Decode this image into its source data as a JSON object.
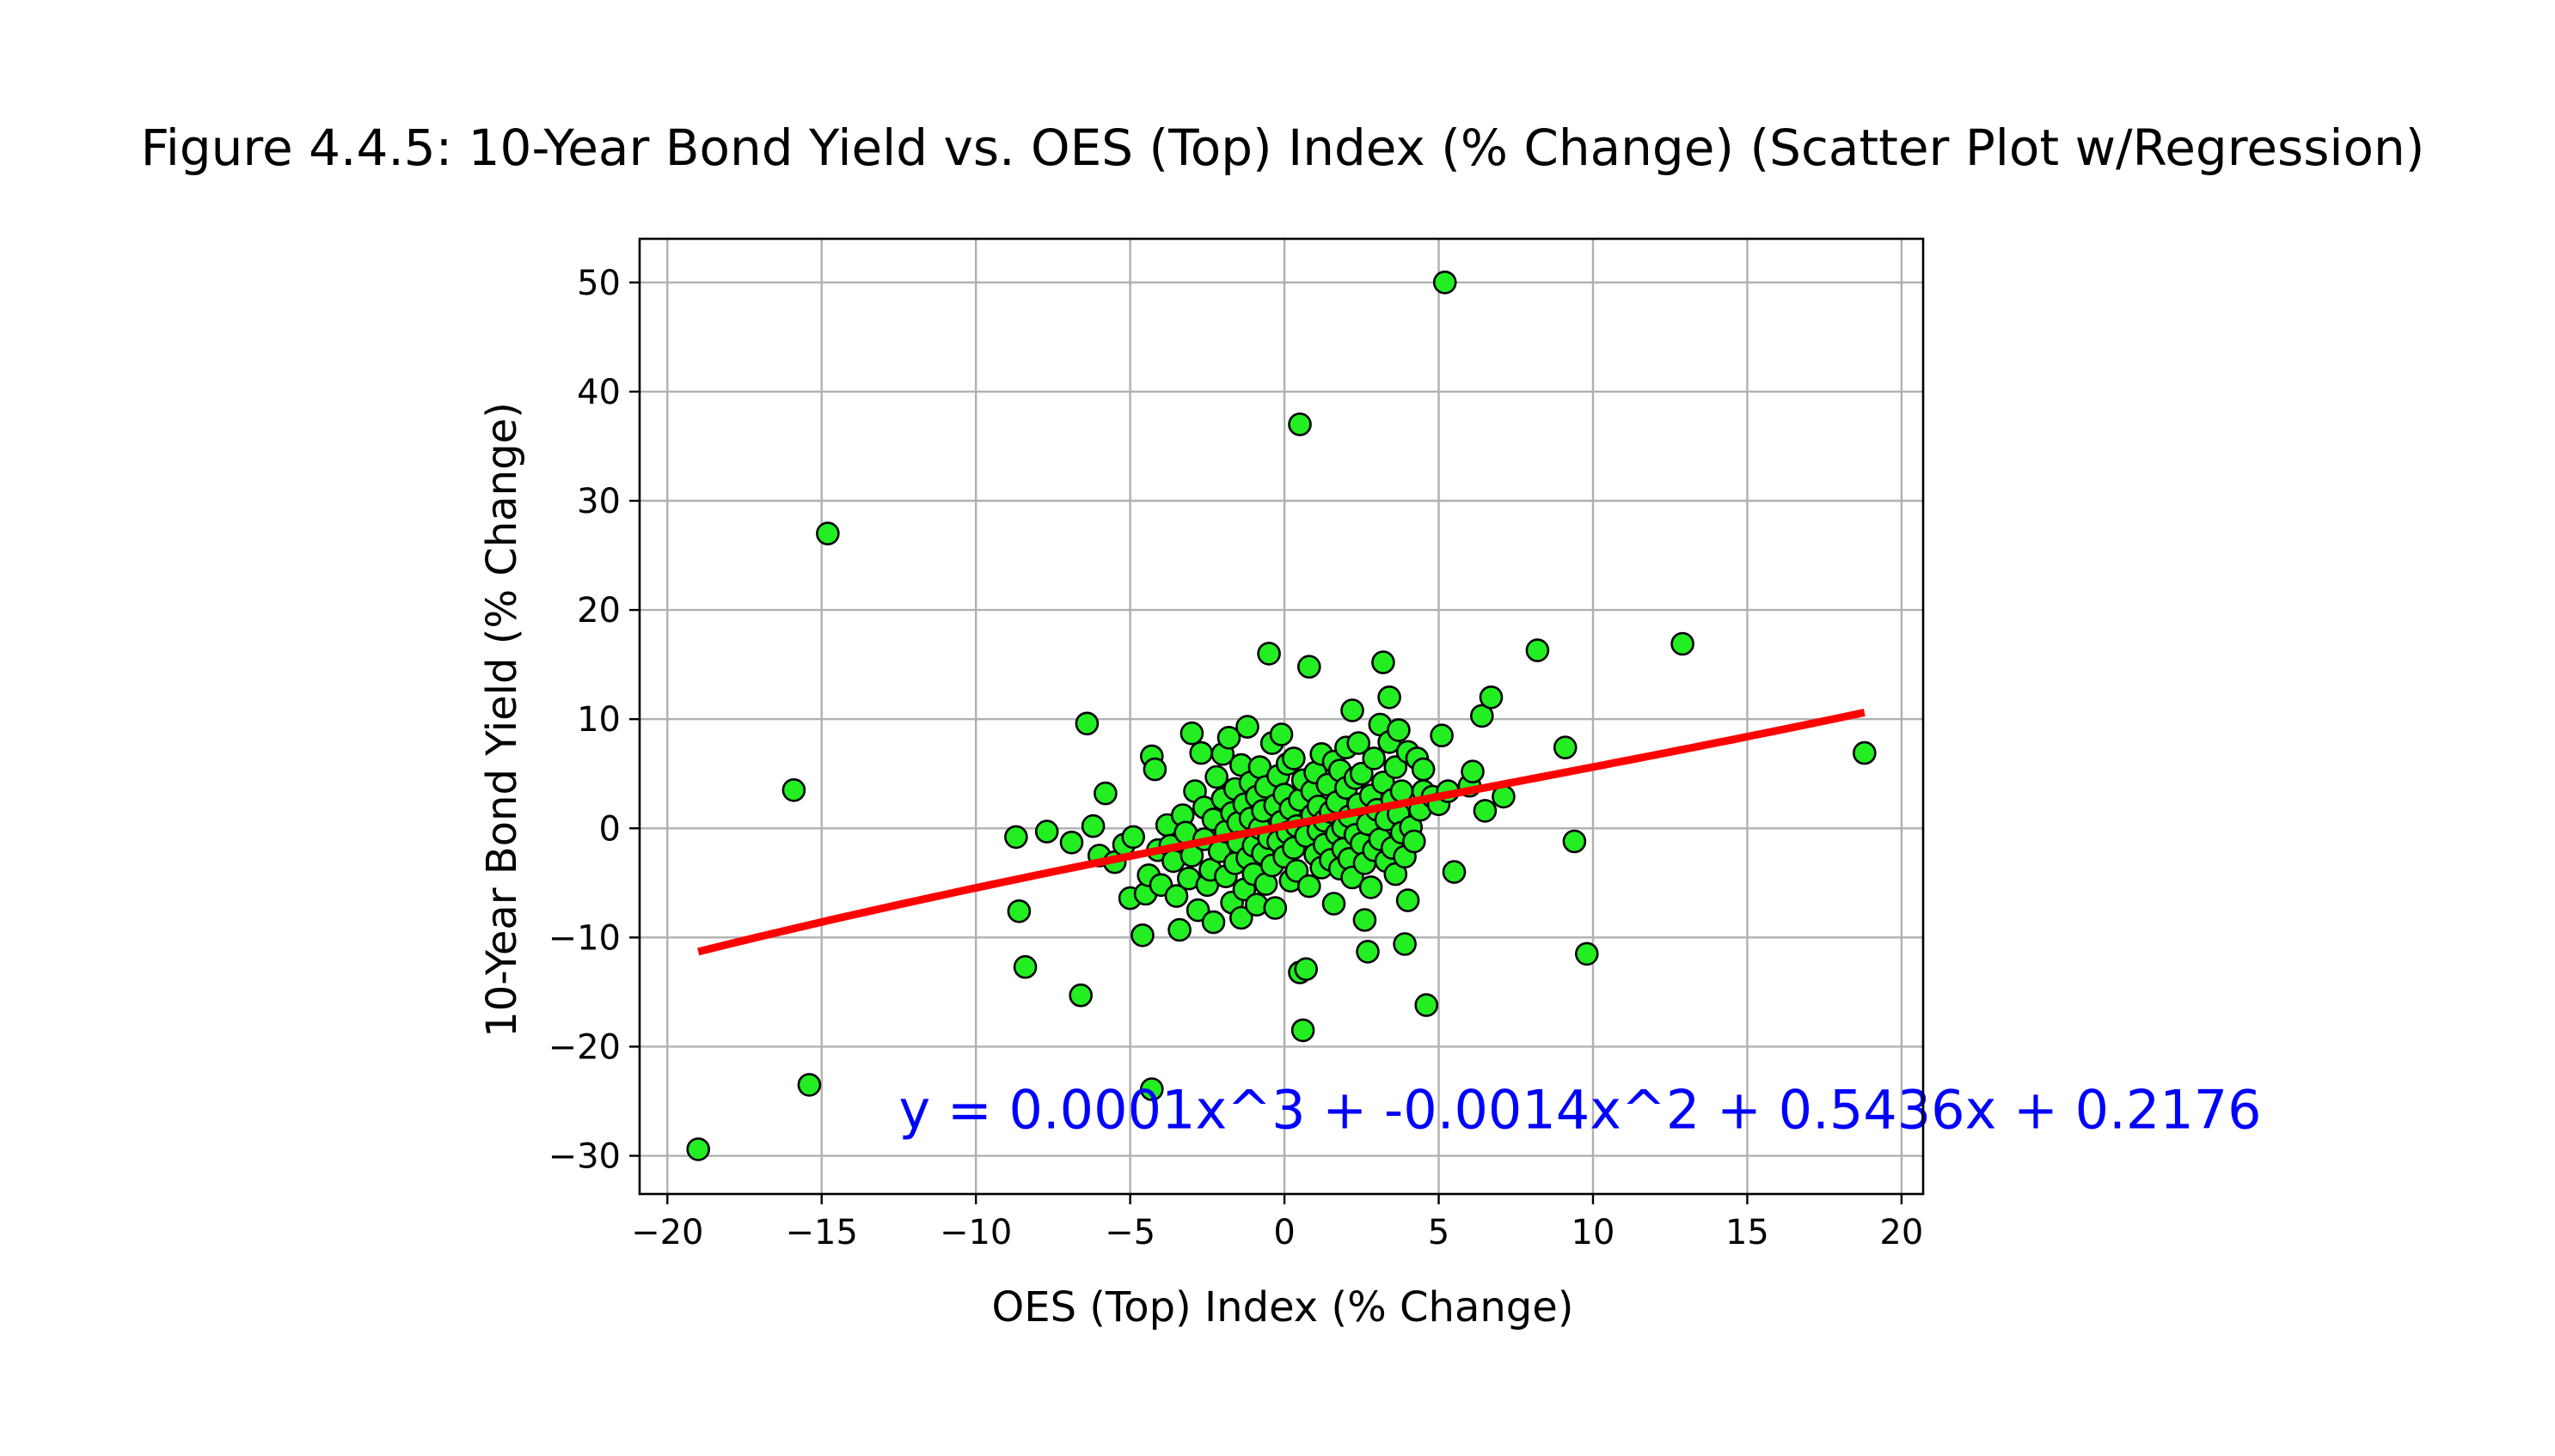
{
  "chart_data": {
    "type": "scatter",
    "title": "Figure 4.4.5: 10-Year Bond Yield vs. OES (Top) Index (% Change) (Scatter Plot w/Regression)",
    "xlabel": "OES (Top) Index (% Change)",
    "ylabel": "10-Year Bond Yield (% Change)",
    "xlim": [
      -20.9,
      20.7
    ],
    "ylim": [
      -33.5,
      54.0
    ],
    "xticks": [
      -20,
      -15,
      -10,
      -5,
      0,
      5,
      10,
      15,
      20
    ],
    "yticks": [
      -30,
      -20,
      -10,
      0,
      10,
      20,
      30,
      40,
      50
    ],
    "xtick_labels": [
      "−20",
      "−15",
      "−10",
      "−5",
      "0",
      "5",
      "10",
      "15",
      "20"
    ],
    "ytick_labels": [
      "−30",
      "−20",
      "−10",
      "0",
      "10",
      "20",
      "30",
      "40",
      "50"
    ],
    "grid": true,
    "point_color": "#22ee22",
    "point_edge_color": "#000000",
    "regression_color": "#ff0000",
    "equation_color": "#0000ff",
    "regression": {
      "coefficients": [
        0.0001,
        -0.0014,
        0.5436,
        0.2176
      ],
      "x_range": [
        -19.0,
        18.8
      ],
      "equation_text": "y = 0.0001x^3 + -0.0014x^2 + 0.5436x + 0.2176",
      "equation_anchor": [
        -12.5,
        -27.5
      ]
    },
    "points": [
      [
        -19.0,
        -29.4
      ],
      [
        -15.9,
        3.5
      ],
      [
        -15.4,
        -23.5
      ],
      [
        -14.8,
        27.0
      ],
      [
        -8.7,
        -0.8
      ],
      [
        -8.6,
        -7.6
      ],
      [
        -8.4,
        -12.7
      ],
      [
        -7.7,
        -0.3
      ],
      [
        -6.9,
        -1.3
      ],
      [
        -6.6,
        -15.3
      ],
      [
        -6.4,
        9.6
      ],
      [
        -6.2,
        0.2
      ],
      [
        -6.0,
        -2.5
      ],
      [
        -5.8,
        3.2
      ],
      [
        -5.5,
        -3.1
      ],
      [
        -5.2,
        -1.5
      ],
      [
        -5.0,
        -6.4
      ],
      [
        -4.9,
        -0.8
      ],
      [
        -4.6,
        -9.8
      ],
      [
        -4.5,
        -6.0
      ],
      [
        -4.4,
        -4.3
      ],
      [
        -4.3,
        6.6
      ],
      [
        -4.3,
        -23.9
      ],
      [
        -4.2,
        5.4
      ],
      [
        -4.1,
        -2.0
      ],
      [
        -4.0,
        -5.2
      ],
      [
        -3.8,
        0.3
      ],
      [
        -3.7,
        -1.6
      ],
      [
        -3.6,
        -3.0
      ],
      [
        -3.5,
        -6.2
      ],
      [
        -3.4,
        -9.3
      ],
      [
        -3.3,
        1.2
      ],
      [
        -3.2,
        -0.4
      ],
      [
        -3.1,
        -4.6
      ],
      [
        -3.0,
        -2.5
      ],
      [
        -3.0,
        8.7
      ],
      [
        -2.9,
        3.4
      ],
      [
        -2.8,
        -7.5
      ],
      [
        -2.7,
        6.9
      ],
      [
        -2.6,
        -1.0
      ],
      [
        -2.6,
        1.9
      ],
      [
        -2.5,
        -5.2
      ],
      [
        -2.4,
        -3.8
      ],
      [
        -2.3,
        0.8
      ],
      [
        -2.3,
        -8.6
      ],
      [
        -2.2,
        4.7
      ],
      [
        -2.1,
        -2.1
      ],
      [
        -2.0,
        2.7
      ],
      [
        -2.0,
        6.8
      ],
      [
        -1.9,
        -0.3
      ],
      [
        -1.9,
        -4.4
      ],
      [
        -1.8,
        8.3
      ],
      [
        -1.7,
        1.4
      ],
      [
        -1.7,
        -6.8
      ],
      [
        -1.6,
        -3.2
      ],
      [
        -1.6,
        3.6
      ],
      [
        -1.5,
        0.5
      ],
      [
        -1.5,
        -1.3
      ],
      [
        -1.4,
        5.8
      ],
      [
        -1.4,
        -8.2
      ],
      [
        -1.3,
        2.2
      ],
      [
        -1.3,
        -5.6
      ],
      [
        -1.2,
        9.3
      ],
      [
        -1.2,
        -2.7
      ],
      [
        -1.1,
        0.9
      ],
      [
        -1.1,
        4.2
      ],
      [
        -1.0,
        -1.6
      ],
      [
        -1.0,
        -4.2
      ],
      [
        -0.9,
        2.9
      ],
      [
        -0.9,
        -7.0
      ],
      [
        -0.8,
        0.0
      ],
      [
        -0.8,
        5.6
      ],
      [
        -0.7,
        -2.3
      ],
      [
        -0.7,
        1.6
      ],
      [
        -0.6,
        -5.1
      ],
      [
        -0.6,
        3.8
      ],
      [
        -0.5,
        16.0
      ],
      [
        -0.5,
        -0.9
      ],
      [
        -0.4,
        7.8
      ],
      [
        -0.4,
        -3.4
      ],
      [
        -0.3,
        2.1
      ],
      [
        -0.3,
        -7.3
      ],
      [
        -0.2,
        4.8
      ],
      [
        -0.2,
        -1.2
      ],
      [
        -0.1,
        0.6
      ],
      [
        -0.1,
        8.6
      ],
      [
        0.0,
        -2.6
      ],
      [
        0.0,
        3.1
      ],
      [
        0.1,
        -0.4
      ],
      [
        0.1,
        5.9
      ],
      [
        0.2,
        -4.8
      ],
      [
        0.2,
        1.8
      ],
      [
        0.3,
        -1.8
      ],
      [
        0.3,
        6.4
      ],
      [
        0.4,
        0.2
      ],
      [
        0.4,
        -3.9
      ],
      [
        0.5,
        2.6
      ],
      [
        0.5,
        37.0
      ],
      [
        0.5,
        -13.2
      ],
      [
        0.6,
        -18.5
      ],
      [
        0.6,
        4.4
      ],
      [
        0.7,
        -0.7
      ],
      [
        0.7,
        -12.9
      ],
      [
        0.8,
        14.8
      ],
      [
        0.8,
        -5.3
      ],
      [
        0.9,
        1.2
      ],
      [
        0.9,
        3.4
      ],
      [
        1.0,
        -2.4
      ],
      [
        1.0,
        5.1
      ],
      [
        1.1,
        -0.2
      ],
      [
        1.1,
        2.0
      ],
      [
        1.2,
        -3.6
      ],
      [
        1.2,
        6.8
      ],
      [
        1.3,
        0.7
      ],
      [
        1.3,
        -1.5
      ],
      [
        1.4,
        4.0
      ],
      [
        1.5,
        -2.9
      ],
      [
        1.5,
        1.5
      ],
      [
        1.6,
        6.1
      ],
      [
        1.6,
        -6.9
      ],
      [
        1.7,
        -0.5
      ],
      [
        1.7,
        2.4
      ],
      [
        1.8,
        -3.7
      ],
      [
        1.8,
        5.3
      ],
      [
        1.9,
        0.1
      ],
      [
        1.9,
        -1.9
      ],
      [
        2.0,
        3.7
      ],
      [
        2.0,
        7.4
      ],
      [
        2.1,
        -2.8
      ],
      [
        2.1,
        1.1
      ],
      [
        2.2,
        10.8
      ],
      [
        2.2,
        -4.5
      ],
      [
        2.3,
        4.6
      ],
      [
        2.3,
        -0.6
      ],
      [
        2.4,
        2.2
      ],
      [
        2.4,
        7.8
      ],
      [
        2.5,
        -1.4
      ],
      [
        2.5,
        5.0
      ],
      [
        2.6,
        -3.2
      ],
      [
        2.6,
        -8.4
      ],
      [
        2.7,
        -11.3
      ],
      [
        2.7,
        0.4
      ],
      [
        2.8,
        3.0
      ],
      [
        2.8,
        -5.4
      ],
      [
        2.9,
        6.4
      ],
      [
        2.9,
        -2.0
      ],
      [
        3.0,
        1.7
      ],
      [
        3.1,
        9.5
      ],
      [
        3.1,
        -1.0
      ],
      [
        3.2,
        15.2
      ],
      [
        3.2,
        4.2
      ],
      [
        3.3,
        -3.0
      ],
      [
        3.3,
        0.8
      ],
      [
        3.4,
        7.9
      ],
      [
        3.4,
        12.0
      ],
      [
        3.5,
        2.6
      ],
      [
        3.5,
        -1.8
      ],
      [
        3.6,
        5.6
      ],
      [
        3.6,
        -4.2
      ],
      [
        3.7,
        1.3
      ],
      [
        3.7,
        9.0
      ],
      [
        3.8,
        -0.4
      ],
      [
        3.8,
        3.4
      ],
      [
        3.9,
        -2.6
      ],
      [
        3.9,
        -10.6
      ],
      [
        4.0,
        -6.6
      ],
      [
        4.0,
        7.0
      ],
      [
        4.1,
        0.1
      ],
      [
        4.2,
        -1.2
      ],
      [
        4.3,
        6.4
      ],
      [
        4.4,
        1.7
      ],
      [
        4.5,
        3.4
      ],
      [
        4.5,
        5.4
      ],
      [
        4.6,
        -16.2
      ],
      [
        4.8,
        2.9
      ],
      [
        5.0,
        2.2
      ],
      [
        5.1,
        8.5
      ],
      [
        5.2,
        50.0
      ],
      [
        5.3,
        3.4
      ],
      [
        5.5,
        -4.0
      ],
      [
        6.0,
        3.9
      ],
      [
        6.1,
        5.2
      ],
      [
        6.4,
        10.3
      ],
      [
        6.5,
        1.6
      ],
      [
        6.7,
        12.0
      ],
      [
        7.1,
        2.9
      ],
      [
        8.2,
        16.3
      ],
      [
        9.1,
        7.4
      ],
      [
        9.4,
        -1.2
      ],
      [
        9.8,
        -11.5
      ],
      [
        12.9,
        16.9
      ],
      [
        18.8,
        6.9
      ]
    ]
  }
}
